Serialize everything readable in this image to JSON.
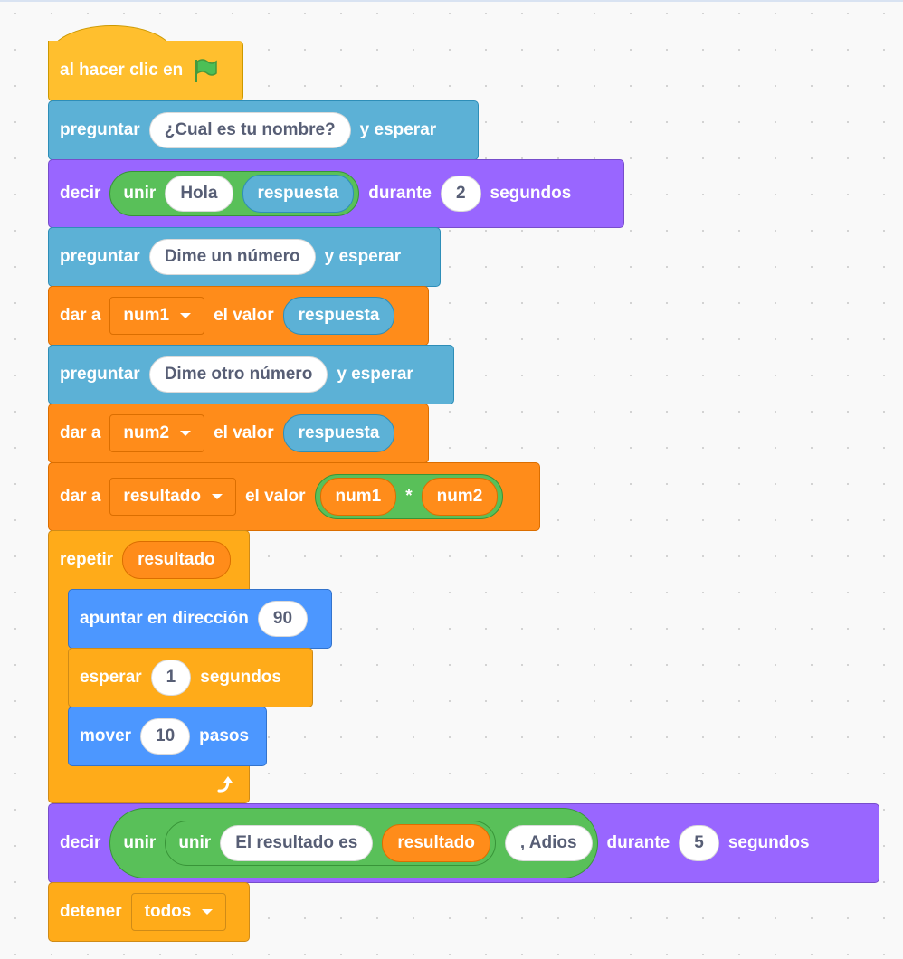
{
  "colors": {
    "events": "#FFBF2E",
    "sensing": "#5CB1D6",
    "looks": "#9966FF",
    "variables": "#FF8C1A",
    "operators": "#59C059",
    "control": "#FFAB19",
    "motion": "#4C97FF",
    "input_text": "#575E75"
  },
  "script": {
    "hat": {
      "label": "al hacer clic en",
      "icon": "green-flag-icon"
    },
    "ask1": {
      "label": "preguntar",
      "value": "¿Cual es tu nombre?",
      "suffix": "y esperar"
    },
    "say1": {
      "label": "decir",
      "join_label": "unir",
      "join_a": "Hola",
      "join_b": "respuesta",
      "during": "durante",
      "secs": "2",
      "unit": "segundos"
    },
    "ask2": {
      "label": "preguntar",
      "value": "Dime un número",
      "suffix": "y esperar"
    },
    "set1": {
      "label": "dar a",
      "var": "num1",
      "mid": "el valor",
      "value": "respuesta"
    },
    "ask3": {
      "label": "preguntar",
      "value": "Dime otro número",
      "suffix": "y esperar"
    },
    "set2": {
      "label": "dar a",
      "var": "num2",
      "mid": "el valor",
      "value": "respuesta"
    },
    "set3": {
      "label": "dar a",
      "var": "resultado",
      "mid": "el valor",
      "op_a": "num1",
      "op": "*",
      "op_b": "num2"
    },
    "repeat": {
      "label": "repetir",
      "value": "resultado",
      "icon": "loop-arrow-icon"
    },
    "point": {
      "label": "apuntar en dirección",
      "value": "90"
    },
    "wait": {
      "label": "esperar",
      "value": "1",
      "unit": "segundos"
    },
    "move": {
      "label": "mover",
      "value": "10",
      "unit": "pasos"
    },
    "say2": {
      "label": "decir",
      "join_label": "unir",
      "inner_join_label": "unir",
      "text": "El resultado es",
      "var": "resultado",
      "tail": ", Adios",
      "during": "durante",
      "secs": "5",
      "unit": "segundos"
    },
    "stop": {
      "label": "detener",
      "option": "todos"
    }
  }
}
